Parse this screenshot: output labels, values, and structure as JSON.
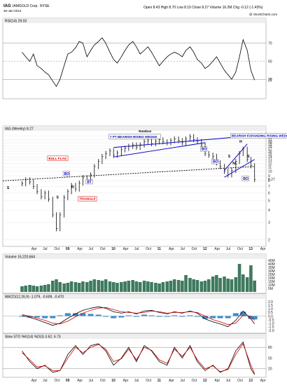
{
  "header": {
    "symbol": "IAG",
    "company": "IAMGOLD Corp.",
    "exchange": "NYSE",
    "date": "30-Jan-2013",
    "quote": "Open 8.43  High 8.70  Low 8.19  Close 8.27  Volume 16.2M  Chg -0.12 (-1.43%)",
    "watermark": "@ StockCharts.com"
  },
  "chart_data": [
    {
      "type": "line",
      "panel": "RSI",
      "label": "RSI(14) 29.03",
      "ylim": [
        10,
        90
      ],
      "y_ticks": [
        30,
        50,
        70
      ],
      "reference_lines": [
        30,
        50,
        70
      ],
      "x": [
        2008.0,
        2008.08,
        2008.17,
        2008.25,
        2008.33,
        2008.42,
        2008.5,
        2008.58,
        2008.67,
        2008.75,
        2008.83,
        2008.92,
        2009.0,
        2009.08,
        2009.17,
        2009.25,
        2009.33,
        2009.42,
        2009.5,
        2009.58,
        2009.67,
        2009.75,
        2009.83,
        2009.92,
        2010.0,
        2010.08,
        2010.17,
        2010.25,
        2010.33,
        2010.42,
        2010.5,
        2010.58,
        2010.67,
        2010.75,
        2010.83,
        2010.92,
        2011.0,
        2011.08,
        2011.17,
        2011.25,
        2011.33,
        2011.42,
        2011.5,
        2011.58,
        2011.67,
        2011.75,
        2011.83,
        2011.92,
        2012.0,
        2012.08,
        2012.17,
        2012.25,
        2012.33,
        2012.42,
        2012.5,
        2012.58,
        2012.67,
        2012.75,
        2012.83,
        2012.92,
        2013.0,
        2013.08
      ],
      "values": [
        60,
        55,
        50,
        58,
        45,
        42,
        38,
        35,
        28,
        22,
        30,
        45,
        58,
        60,
        65,
        72,
        70,
        55,
        62,
        68,
        72,
        76,
        70,
        60,
        52,
        48,
        55,
        62,
        68,
        72,
        66,
        58,
        62,
        66,
        60,
        52,
        45,
        50,
        55,
        58,
        60,
        58,
        55,
        62,
        66,
        60,
        52,
        48,
        42,
        45,
        50,
        55,
        48,
        40,
        35,
        30,
        38,
        55,
        74,
        62,
        40,
        29
      ]
    },
    {
      "type": "line",
      "panel": "price",
      "label": "IAG (Weekly) 8.27",
      "scale": "log",
      "ylim": [
        1.8,
        25
      ],
      "y_ticks": [
        2,
        3,
        4,
        5,
        6,
        7,
        8,
        9,
        10,
        11,
        12,
        13,
        14,
        15,
        16,
        17,
        18,
        19,
        20,
        21,
        23
      ],
      "x_ticks": [
        "Apr",
        "Jul",
        "Oct",
        "09",
        "Apr",
        "Jul",
        "Oct",
        "10",
        "Apr",
        "Jul",
        "Oct",
        "11",
        "Apr",
        "Jul",
        "Oct",
        "12",
        "Apr",
        "Jul",
        "Oct",
        "13",
        "Apr"
      ],
      "x": [
        2008.0,
        2008.08,
        2008.17,
        2008.25,
        2008.33,
        2008.42,
        2008.5,
        2008.58,
        2008.67,
        2008.75,
        2008.83,
        2008.92,
        2009.0,
        2009.08,
        2009.17,
        2009.25,
        2009.33,
        2009.42,
        2009.5,
        2009.58,
        2009.67,
        2009.75,
        2009.83,
        2009.92,
        2010.0,
        2010.08,
        2010.17,
        2010.25,
        2010.33,
        2010.42,
        2010.5,
        2010.58,
        2010.67,
        2010.75,
        2010.83,
        2010.92,
        2011.0,
        2011.08,
        2011.17,
        2011.25,
        2011.33,
        2011.42,
        2011.5,
        2011.58,
        2011.67,
        2011.75,
        2011.83,
        2011.92,
        2012.0,
        2012.08,
        2012.17,
        2012.25,
        2012.33,
        2012.42,
        2012.5,
        2012.58,
        2012.67,
        2012.75,
        2012.83,
        2012.92,
        2013.0,
        2013.08
      ],
      "close": [
        7.5,
        8.2,
        7.8,
        7.0,
        6.2,
        5.5,
        6.0,
        5.2,
        3.6,
        2.6,
        3.6,
        5.4,
        6.2,
        7.2,
        6.6,
        7.6,
        8.6,
        8.2,
        9.2,
        11.2,
        12.6,
        14.2,
        15.2,
        16.2,
        14.6,
        15.4,
        16.6,
        17.2,
        18.0,
        18.6,
        17.6,
        18.6,
        20.0,
        20.6,
        19.2,
        20.0,
        21.0,
        20.0,
        19.6,
        20.6,
        21.4,
        20.6,
        19.6,
        21.4,
        22.6,
        21.0,
        20.2,
        18.6,
        15.2,
        14.6,
        14.2,
        12.2,
        11.2,
        10.0,
        9.2,
        10.2,
        12.6,
        15.2,
        16.8,
        13.2,
        11.4,
        8.27
      ],
      "lines": [
        {
          "name": "NL",
          "label": "NL",
          "color": "#000000",
          "style": "dashed",
          "from": [
            2007.58,
            8.0
          ],
          "to": [
            2013.08,
            11.2
          ]
        },
        {
          "name": "7 PT BEARISH RISING WEDGE top",
          "color": "#1414c8",
          "from": [
            2010.0,
            17.5
          ],
          "to": [
            2012.92,
            22.8
          ]
        },
        {
          "name": "7 PT BEARISH RISING WEDGE bottom",
          "color": "#1414c8",
          "from": [
            2010.0,
            14.0
          ],
          "to": [
            2012.0,
            19.6
          ]
        },
        {
          "name": "BEARISH EXPANDING RISING WEDGE top",
          "color": "#1414c8",
          "from": [
            2012.42,
            10.2
          ],
          "to": [
            2012.92,
            19.0
          ]
        },
        {
          "name": "BEARISH EXPANDING RISING WEDGE bottom",
          "color": "#1414c8",
          "from": [
            2012.42,
            8.7
          ],
          "to": [
            2013.08,
            13.2
          ]
        }
      ],
      "annotations": [
        {
          "text": "Rambus",
          "x": 2010.55,
          "y": 25.0,
          "color": "#000000"
        },
        {
          "text": "7 PT BEARISH RISING WEDGE",
          "x": 2009.92,
          "y": 22.0,
          "color": "#0000c8"
        },
        {
          "text": "BEARISH EXPANDING RISING WEDGE",
          "x": 2012.58,
          "y": 22.4,
          "color": "#0000c8"
        },
        {
          "text": "BULL FLAG",
          "x": 2008.58,
          "y": 13.2,
          "color": "#d40000"
        },
        {
          "text": "TRIANGLE",
          "x": 2009.25,
          "y": 5.1,
          "color": "#d40000"
        },
        {
          "text": "BO",
          "x": 2008.92,
          "y": 9.2,
          "color": "#0000c8"
        },
        {
          "text": "BT",
          "x": 2009.42,
          "y": 7.6,
          "color": "#0000c8"
        },
        {
          "text": "BO",
          "x": 2011.92,
          "y": 16.4,
          "color": "#0000c8"
        },
        {
          "text": "BO",
          "x": 2012.17,
          "y": 12.2,
          "color": "#0000c8"
        },
        {
          "text": "BO",
          "x": 2012.83,
          "y": 8.2,
          "color": "#0000c8"
        },
        {
          "text": "S",
          "x": 2007.67,
          "y": 6.6,
          "color": "#000000"
        },
        {
          "text": "S",
          "x": 2008.75,
          "y": 5.3,
          "color": "#000000"
        },
        {
          "text": "H",
          "x": 2009.08,
          "y": 6.7,
          "color": "#000000"
        },
        {
          "text": "H",
          "x": 2012.75,
          "y": 19.6,
          "color": "#000000"
        },
        {
          "text": "S",
          "x": 2012.5,
          "y": 13.8,
          "color": "#000000"
        },
        {
          "text": "S",
          "x": 2012.92,
          "y": 13.8,
          "color": "#000000"
        },
        {
          "text": "NL",
          "x": 2012.6,
          "y": 11.7,
          "color": "#000000"
        }
      ]
    },
    {
      "type": "bar",
      "panel": "volume",
      "label": "Volume 16,220,664",
      "unit": "M",
      "ylim": [
        0,
        45
      ],
      "y_ticks": [
        5,
        10,
        15,
        20,
        25,
        30,
        35,
        40,
        45
      ],
      "x": [
        2008.0,
        2008.08,
        2008.17,
        2008.25,
        2008.33,
        2008.42,
        2008.5,
        2008.58,
        2008.67,
        2008.75,
        2008.83,
        2008.92,
        2009.0,
        2009.08,
        2009.17,
        2009.25,
        2009.33,
        2009.42,
        2009.5,
        2009.58,
        2009.67,
        2009.75,
        2009.83,
        2009.92,
        2010.0,
        2010.08,
        2010.17,
        2010.25,
        2010.33,
        2010.42,
        2010.5,
        2010.58,
        2010.67,
        2010.75,
        2010.83,
        2010.92,
        2011.0,
        2011.08,
        2011.17,
        2011.25,
        2011.33,
        2011.42,
        2011.5,
        2011.58,
        2011.67,
        2011.75,
        2011.83,
        2011.92,
        2012.0,
        2012.08,
        2012.17,
        2012.25,
        2012.33,
        2012.42,
        2012.5,
        2012.58,
        2012.67,
        2012.75,
        2012.83,
        2012.92,
        2013.0,
        2013.08
      ],
      "values": [
        8,
        9,
        10,
        9,
        8,
        9,
        10,
        11,
        16,
        18,
        14,
        12,
        13,
        15,
        14,
        13,
        15,
        14,
        16,
        18,
        17,
        16,
        18,
        15,
        14,
        13,
        14,
        15,
        16,
        17,
        15,
        14,
        16,
        15,
        14,
        13,
        12,
        14,
        15,
        16,
        18,
        17,
        16,
        24,
        20,
        18,
        17,
        15,
        16,
        18,
        22,
        24,
        20,
        22,
        19,
        18,
        21,
        40,
        25,
        21,
        38,
        16.2
      ]
    },
    {
      "type": "line",
      "panel": "MACD",
      "label": "MACD(12,26,9) -1.079, -0.609, -0.470",
      "ylim": [
        -2.2,
        2.2
      ],
      "y_ticks": [
        -2.0,
        -1.5,
        -1.0,
        -0.5,
        0.0,
        0.5,
        1.0,
        1.5,
        2.0
      ],
      "x": [
        2008.0,
        2008.17,
        2008.33,
        2008.5,
        2008.67,
        2008.83,
        2009.0,
        2009.17,
        2009.33,
        2009.5,
        2009.67,
        2009.83,
        2010.0,
        2010.17,
        2010.33,
        2010.5,
        2010.67,
        2010.83,
        2011.0,
        2011.17,
        2011.33,
        2011.5,
        2011.67,
        2011.83,
        2012.0,
        2012.17,
        2012.33,
        2012.5,
        2012.67,
        2012.83,
        2013.0,
        2013.08
      ],
      "series": [
        {
          "name": "MACD",
          "color": "#000000",
          "values": [
            0.1,
            -0.2,
            -0.5,
            -0.9,
            -1.3,
            -1.0,
            -0.3,
            0.3,
            0.8,
            1.1,
            1.3,
            1.1,
            0.6,
            0.4,
            0.6,
            0.3,
            0.7,
            0.8,
            0.5,
            0.3,
            0.6,
            0.4,
            0.7,
            0.4,
            -0.4,
            -0.8,
            -1.1,
            -1.5,
            -0.6,
            0.7,
            -0.4,
            -1.079
          ]
        },
        {
          "name": "Signal",
          "color": "#d40000",
          "values": [
            0.2,
            0.0,
            -0.3,
            -0.6,
            -1.0,
            -1.1,
            -0.7,
            -0.1,
            0.4,
            0.8,
            1.1,
            1.2,
            0.9,
            0.6,
            0.5,
            0.4,
            0.5,
            0.7,
            0.6,
            0.4,
            0.5,
            0.5,
            0.6,
            0.5,
            0.0,
            -0.5,
            -0.8,
            -1.2,
            -1.0,
            0.1,
            0.0,
            -0.609
          ]
        },
        {
          "name": "Histogram",
          "color": "#3c8ec8",
          "values": [
            -0.1,
            -0.2,
            -0.2,
            -0.3,
            -0.3,
            0.1,
            0.4,
            0.4,
            0.4,
            0.3,
            0.2,
            -0.1,
            -0.3,
            -0.2,
            0.1,
            -0.1,
            0.2,
            0.1,
            -0.1,
            -0.1,
            0.1,
            -0.1,
            0.1,
            -0.1,
            -0.4,
            -0.3,
            -0.3,
            -0.3,
            0.4,
            0.6,
            -0.4,
            -0.47
          ]
        }
      ]
    },
    {
      "type": "line",
      "panel": "stochastic",
      "label": "Slow STO %K(14) %D(3) 3.62, 6.73",
      "ylim": [
        0,
        100
      ],
      "y_ticks": [
        20,
        50,
        80
      ],
      "reference_lines": [
        20,
        80
      ],
      "x": [
        2008.0,
        2008.17,
        2008.33,
        2008.5,
        2008.67,
        2008.83,
        2009.0,
        2009.17,
        2009.33,
        2009.5,
        2009.67,
        2009.83,
        2010.0,
        2010.17,
        2010.33,
        2010.5,
        2010.67,
        2010.83,
        2011.0,
        2011.17,
        2011.33,
        2011.5,
        2011.67,
        2011.83,
        2012.0,
        2012.17,
        2012.33,
        2012.5,
        2012.67,
        2012.83,
        2013.0,
        2013.08
      ],
      "series": [
        {
          "name": "%K",
          "color": "#000000",
          "values": [
            70,
            40,
            20,
            30,
            10,
            15,
            60,
            85,
            60,
            85,
            90,
            70,
            30,
            50,
            80,
            40,
            85,
            70,
            40,
            30,
            80,
            50,
            85,
            40,
            15,
            30,
            10,
            20,
            70,
            95,
            20,
            3.62
          ]
        },
        {
          "name": "%D",
          "color": "#d40000",
          "values": [
            65,
            45,
            25,
            28,
            15,
            15,
            50,
            80,
            65,
            80,
            88,
            75,
            40,
            48,
            75,
            45,
            80,
            72,
            45,
            35,
            75,
            55,
            80,
            45,
            20,
            28,
            12,
            18,
            60,
            90,
            30,
            6.73
          ]
        }
      ]
    }
  ]
}
